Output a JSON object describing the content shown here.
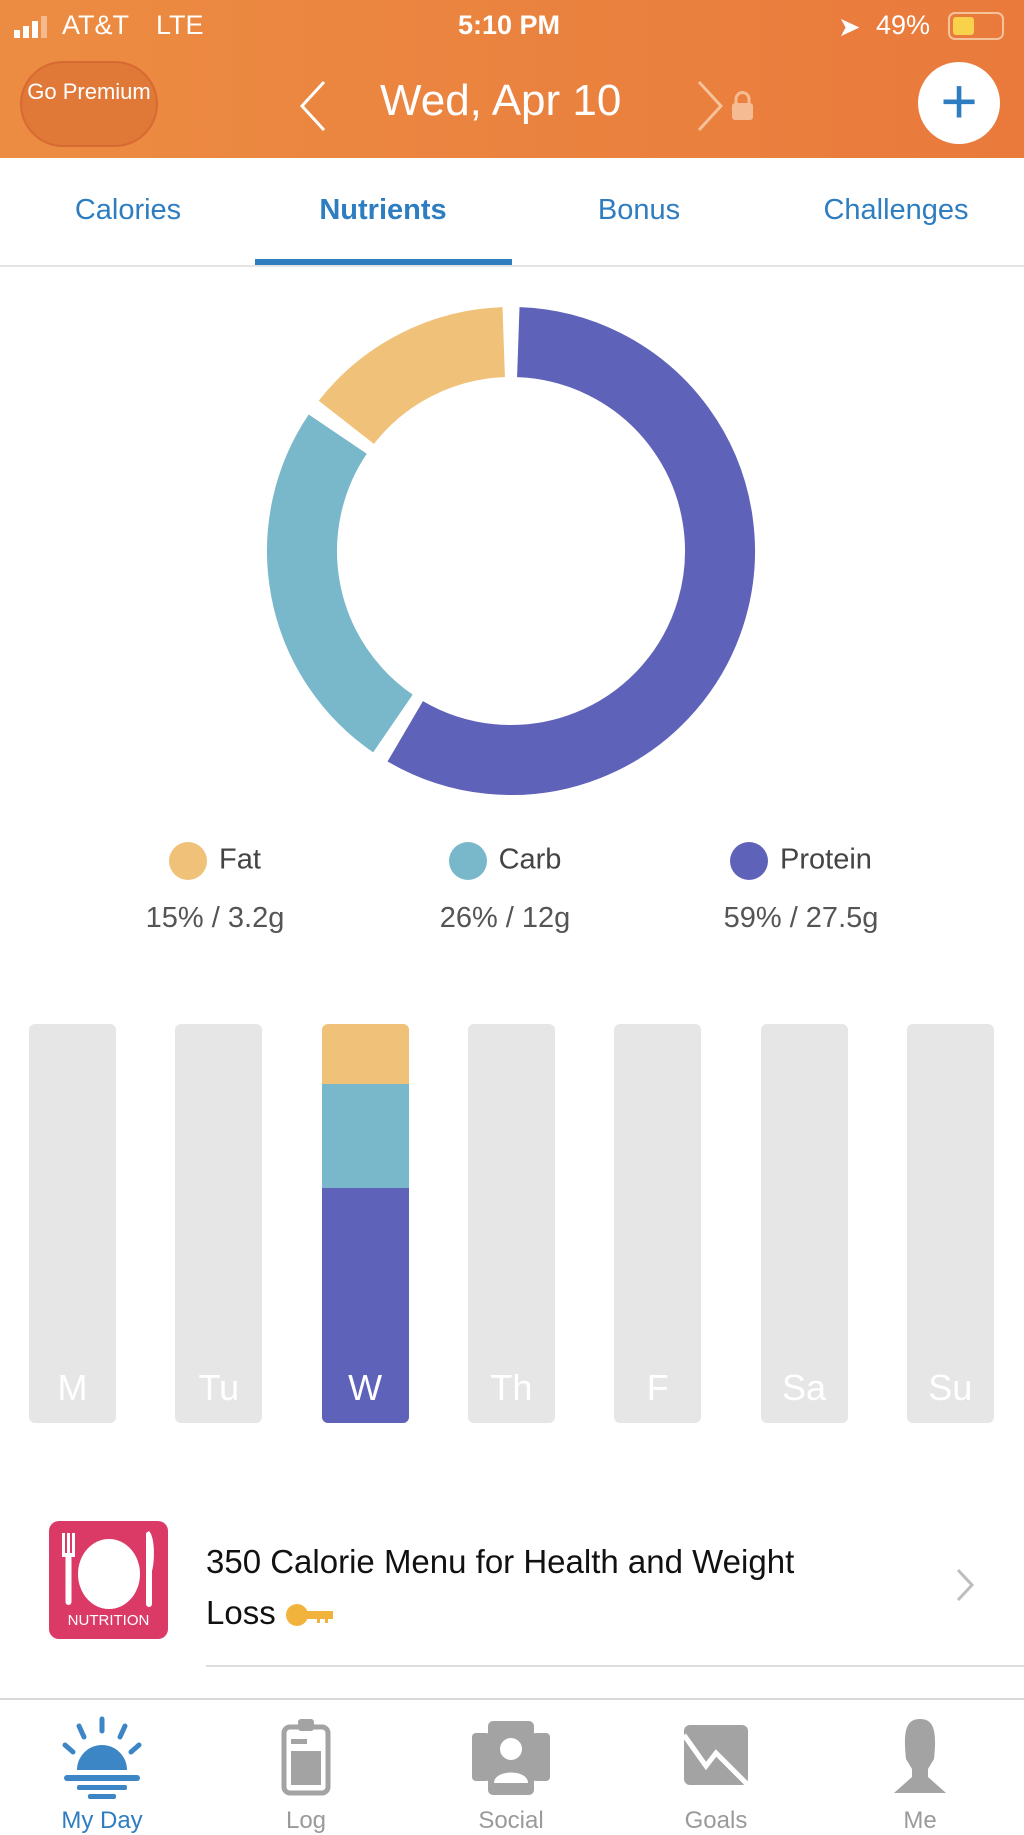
{
  "status_bar": {
    "carrier": "AT&T",
    "network": "LTE",
    "time": "5:10 PM",
    "battery": "49%"
  },
  "header": {
    "premium_label": "Go Premium",
    "date": "Wed, Apr 10",
    "add_label": "+"
  },
  "tabs": [
    {
      "label": "Calories"
    },
    {
      "label": "Nutrients",
      "active": true
    },
    {
      "label": "Bonus"
    },
    {
      "label": "Challenges"
    }
  ],
  "colors": {
    "fat": "#f0c178",
    "carb": "#78b8ca",
    "protein": "#5f62b9",
    "accent": "#2f7dc1",
    "header": "#ea853f"
  },
  "chart_data": {
    "type": "pie",
    "donut": true,
    "categories": [
      "Fat",
      "Carb",
      "Protein"
    ],
    "values": [
      15,
      26,
      59
    ],
    "legend": [
      {
        "name": "Fat",
        "value": "15% / 3.2g"
      },
      {
        "name": "Carb",
        "value": "26% / 12g"
      },
      {
        "name": "Protein",
        "value": "59% / 27.5g"
      }
    ],
    "weekly": {
      "type": "bar",
      "stacked": true,
      "categories": [
        "M",
        "Tu",
        "W",
        "Th",
        "F",
        "Sa",
        "Su"
      ],
      "active_day": "W",
      "W_fraction": {
        "fat": 0.15,
        "carb": 0.26,
        "protein": 0.59
      }
    }
  },
  "article": {
    "icon_label": "NUTRITION",
    "title": "350 Calorie Menu for Health and Weight Loss"
  },
  "bottom_nav": [
    {
      "label": "My Day",
      "active": true
    },
    {
      "label": "Log"
    },
    {
      "label": "Social"
    },
    {
      "label": "Goals"
    },
    {
      "label": "Me"
    }
  ]
}
